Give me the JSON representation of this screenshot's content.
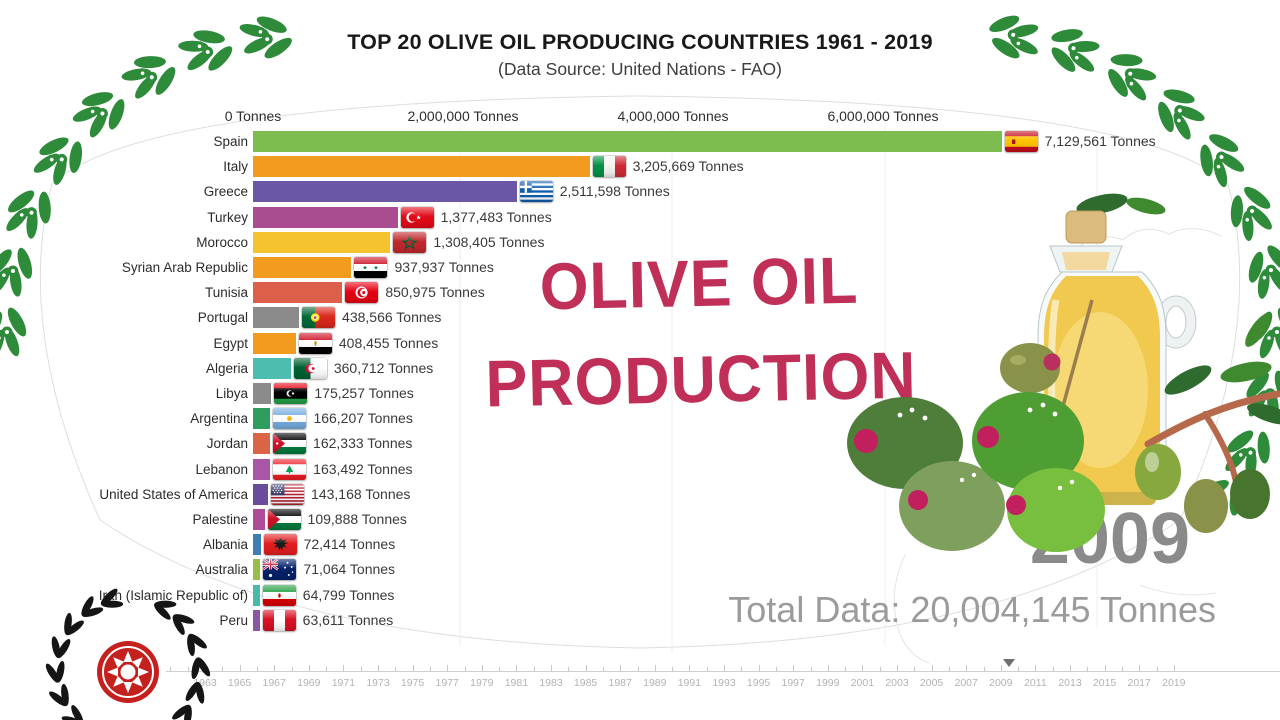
{
  "header": {
    "title": "TOP 20 OLIVE OIL PRODUCING COUNTRIES 1961 - 2019",
    "subtitle": "(Data Source: United Nations - FAO)"
  },
  "overlay_title": {
    "line1": "OLIVE OIL",
    "line2": "PRODUCTION",
    "color": "#bf2f57"
  },
  "year_display": "2009",
  "total_text": "Total Data: 20,004,145 Tonnes",
  "chart_data": {
    "type": "bar",
    "orientation": "horizontal",
    "unit": "Tonnes",
    "title": "TOP 20 OLIVE OIL PRODUCING COUNTRIES 1961 - 2019",
    "value_ticks": [
      {
        "value": 0,
        "label": "0 Tonnes"
      },
      {
        "value": 2000000,
        "label": "2,000,000 Tonnes"
      },
      {
        "value": 4000000,
        "label": "4,000,000 Tonnes"
      },
      {
        "value": 6000000,
        "label": "6,000,000 Tonnes"
      }
    ],
    "xlim": [
      0,
      9780000
    ],
    "bars": [
      {
        "country": "Spain",
        "value": 7129561,
        "value_label": "7,129,561 Tonnes",
        "color": "#7dbd4f",
        "flag": "es"
      },
      {
        "country": "Italy",
        "value": 3205669,
        "value_label": "3,205,669 Tonnes",
        "color": "#f29c1f",
        "flag": "it"
      },
      {
        "country": "Greece",
        "value": 2511598,
        "value_label": "2,511,598 Tonnes",
        "color": "#6a57a5",
        "flag": "gr"
      },
      {
        "country": "Turkey",
        "value": 1377483,
        "value_label": "1,377,483 Tonnes",
        "color": "#aa4d90",
        "flag": "tr"
      },
      {
        "country": "Morocco",
        "value": 1308405,
        "value_label": "1,308,405 Tonnes",
        "color": "#f4c32d",
        "flag": "ma"
      },
      {
        "country": "Syrian Arab Republic",
        "value": 937937,
        "value_label": "937,937 Tonnes",
        "color": "#f29c1f",
        "flag": "sy"
      },
      {
        "country": "Tunisia",
        "value": 850975,
        "value_label": "850,975 Tonnes",
        "color": "#dd5f4b",
        "flag": "tn"
      },
      {
        "country": "Portugal",
        "value": 438566,
        "value_label": "438,566 Tonnes",
        "color": "#8b8b8b",
        "flag": "pt"
      },
      {
        "country": "Egypt",
        "value": 408455,
        "value_label": "408,455 Tonnes",
        "color": "#f29c1f",
        "flag": "eg"
      },
      {
        "country": "Algeria",
        "value": 360712,
        "value_label": "360,712 Tonnes",
        "color": "#4cbdb0",
        "flag": "dz"
      },
      {
        "country": "Libya",
        "value": 175257,
        "value_label": "175,257 Tonnes",
        "color": "#8b8b8b",
        "flag": "ly"
      },
      {
        "country": "Argentina",
        "value": 166207,
        "value_label": "166,207 Tonnes",
        "color": "#2d9e5f",
        "flag": "ar"
      },
      {
        "country": "Jordan",
        "value": 162333,
        "value_label": "162,333 Tonnes",
        "color": "#d96546",
        "flag": "jo"
      },
      {
        "country": "Lebanon",
        "value": 163492,
        "value_label": "163,492 Tonnes",
        "color": "#a857a8",
        "flag": "lb"
      },
      {
        "country": "United States of America",
        "value": 143168,
        "value_label": "143,168 Tonnes",
        "color": "#6a4c9b",
        "flag": "us"
      },
      {
        "country": "Palestine",
        "value": 109888,
        "value_label": "109,888 Tonnes",
        "color": "#ad4d97",
        "flag": "ps"
      },
      {
        "country": "Albania",
        "value": 72414,
        "value_label": "72,414 Tonnes",
        "color": "#3f7eb2",
        "flag": "al"
      },
      {
        "country": "Australia",
        "value": 71064,
        "value_label": "71,064 Tonnes",
        "color": "#96bf47",
        "flag": "au"
      },
      {
        "country": "Iran (Islamic Republic of)",
        "value": 64799,
        "value_label": "64,799 Tonnes",
        "color": "#4ab8aa",
        "flag": "ir"
      },
      {
        "country": "Peru",
        "value": 63611,
        "value_label": "63,611 Tonnes",
        "color": "#8a57a5",
        "flag": "pe"
      }
    ]
  },
  "timeline": {
    "minor_start": 1961,
    "minor_end": 2019,
    "step": 2,
    "marker_year": 2009.5,
    "labels": [
      "1963",
      "1965",
      "1967",
      "1969",
      "1971",
      "1973",
      "1975",
      "1977",
      "1979",
      "1981",
      "1983",
      "1985",
      "1987",
      "1989",
      "1991",
      "1993",
      "1995",
      "1997",
      "1999",
      "2001",
      "2003",
      "2005",
      "2007",
      "2009",
      "2011",
      "2013",
      "2015",
      "2017",
      "2019"
    ]
  },
  "decorations": {
    "wreath_color": "#2e8b3a",
    "logo_badge_color": "#c4201d",
    "logo_wreath_color": "#151515",
    "year_color": "#8a8a8a",
    "total_color": "#9b9b9b"
  }
}
